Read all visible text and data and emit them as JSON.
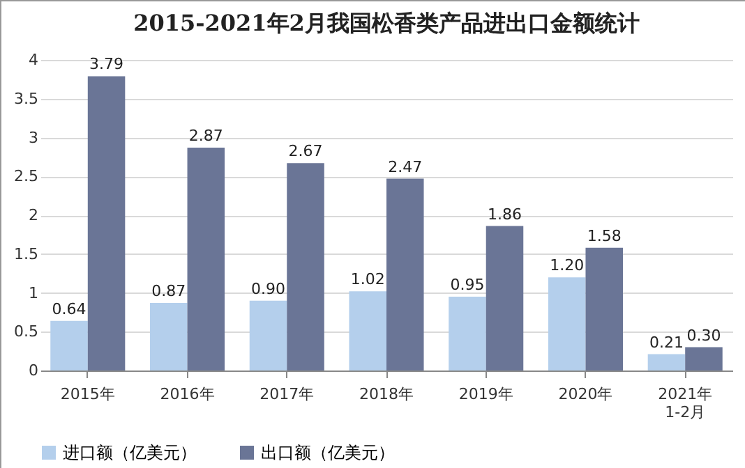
{
  "chart_data": {
    "type": "bar",
    "title": "2015-2021年2月我国松香类产品进出口金额统计",
    "categories": [
      "2015年",
      "2016年",
      "2017年",
      "2018年",
      "2019年",
      "2020年",
      "2021年\n1-2月"
    ],
    "series": [
      {
        "name": "进口额（亿美元）",
        "color": "#b4cfec",
        "values": [
          0.64,
          0.87,
          0.9,
          1.02,
          0.95,
          1.2,
          0.21
        ],
        "value_labels": [
          "0.64",
          "0.87",
          "0.90",
          "1.02",
          "0.95",
          "1.20",
          "0.21"
        ]
      },
      {
        "name": "出口额（亿美元）",
        "color": "#6a7596",
        "values": [
          3.79,
          2.87,
          2.67,
          2.47,
          1.86,
          1.58,
          0.3
        ],
        "value_labels": [
          "3.79",
          "2.87",
          "2.67",
          "2.47",
          "1.86",
          "1.58",
          "0.30"
        ]
      }
    ],
    "ylim": [
      0,
      4
    ],
    "yticks": [
      0,
      0.5,
      1,
      1.5,
      2,
      2.5,
      3,
      3.5,
      4
    ],
    "grid": "y",
    "legend": "bottom"
  }
}
